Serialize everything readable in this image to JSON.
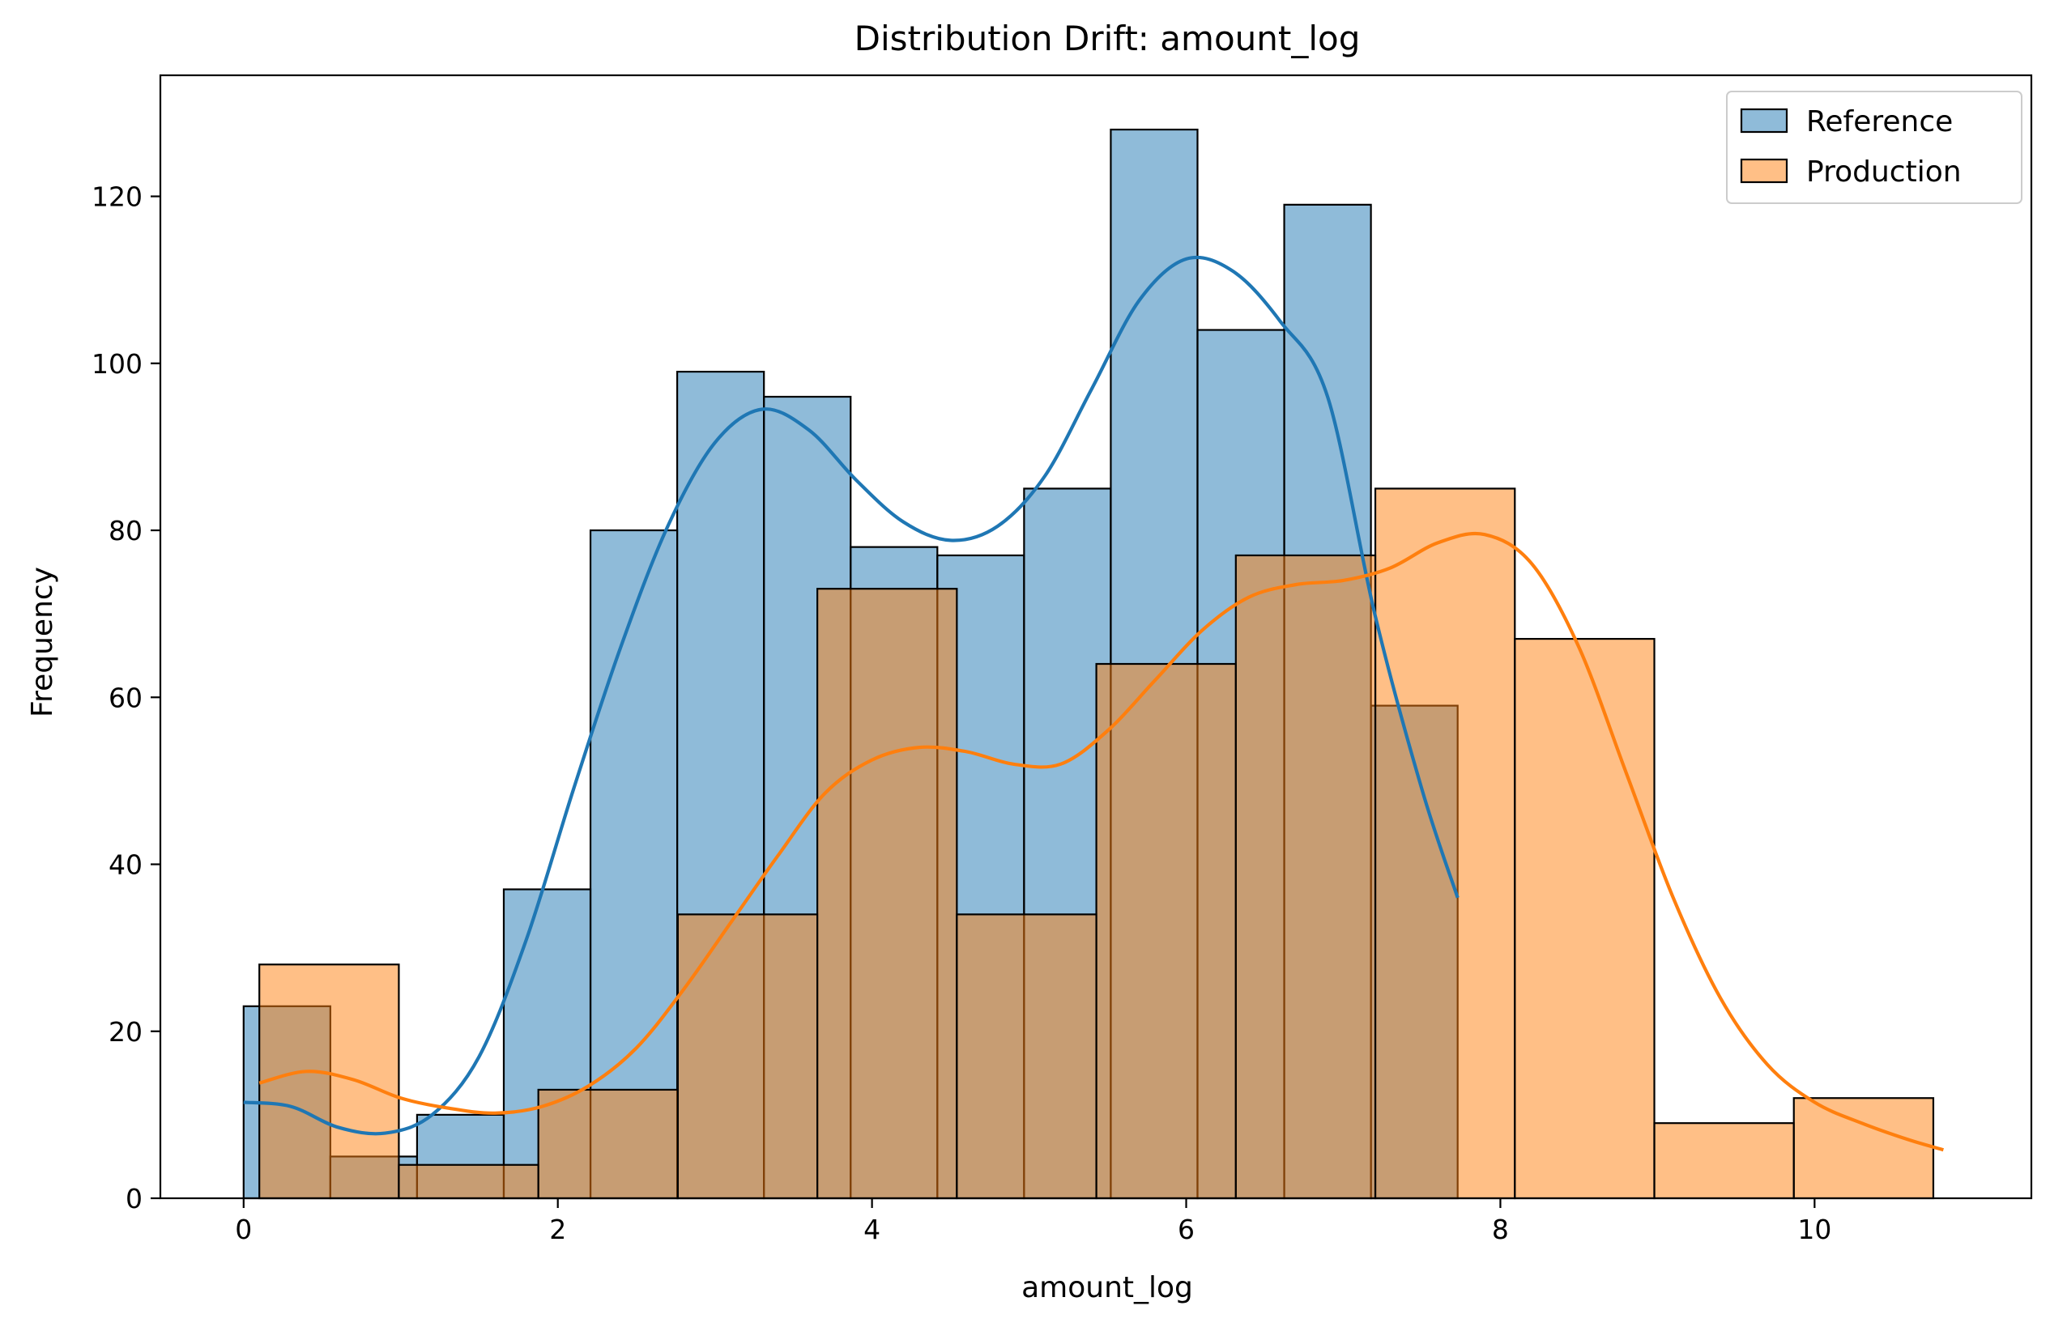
{
  "chart_data": {
    "type": "histogram",
    "title": "Distribution Drift: amount_log",
    "xlabel": "amount_log",
    "ylabel": "Frequency",
    "xlim": [
      -0.53,
      11.38
    ],
    "ylim": [
      0,
      134.5
    ],
    "xticks": [
      0,
      2,
      4,
      6,
      8,
      10
    ],
    "yticks": [
      0,
      20,
      40,
      60,
      80,
      100,
      120
    ],
    "xtick_labels": [
      "0",
      "2",
      "4",
      "6",
      "8",
      "10"
    ],
    "ytick_labels": [
      "0",
      "20",
      "40",
      "60",
      "80",
      "100",
      "120"
    ],
    "grid": false,
    "legend_position": "top-right",
    "series": [
      {
        "name": "Reference",
        "color": "#1f77b4",
        "bin_edges": [
          0.0,
          0.552,
          1.104,
          1.656,
          2.208,
          2.76,
          3.312,
          3.864,
          4.416,
          4.968,
          5.52,
          6.072,
          6.624,
          7.176,
          7.728
        ],
        "counts": [
          23,
          5,
          10,
          37,
          80,
          99,
          96,
          78,
          77,
          85,
          128,
          104,
          119,
          59
        ],
        "kde": [
          [
            0.0,
            11.5
          ],
          [
            0.3,
            11.0
          ],
          [
            0.6,
            8.5
          ],
          [
            0.9,
            7.8
          ],
          [
            1.2,
            10.0
          ],
          [
            1.5,
            17.0
          ],
          [
            1.8,
            31.0
          ],
          [
            2.1,
            49.0
          ],
          [
            2.4,
            66.0
          ],
          [
            2.7,
            80.5
          ],
          [
            3.0,
            90.5
          ],
          [
            3.3,
            94.5
          ],
          [
            3.6,
            92.0
          ],
          [
            3.9,
            86.0
          ],
          [
            4.2,
            81.0
          ],
          [
            4.5,
            78.8
          ],
          [
            4.8,
            80.5
          ],
          [
            5.1,
            86.5
          ],
          [
            5.4,
            97.0
          ],
          [
            5.7,
            107.5
          ],
          [
            6.0,
            112.5
          ],
          [
            6.3,
            111.0
          ],
          [
            6.6,
            105.0
          ],
          [
            6.9,
            96.0
          ],
          [
            7.2,
            70.0
          ],
          [
            7.5,
            49.0
          ],
          [
            7.728,
            36.0
          ]
        ]
      },
      {
        "name": "Production",
        "color": "#ff7f0e",
        "bin_edges": [
          0.1,
          0.988,
          1.876,
          2.764,
          3.652,
          4.54,
          5.428,
          6.316,
          7.204,
          8.092,
          8.98,
          9.868,
          10.756
        ],
        "counts": [
          28,
          4,
          13,
          34,
          73,
          34,
          64,
          77,
          85,
          67,
          9,
          12
        ],
        "kde": [
          [
            0.1,
            13.8
          ],
          [
            0.4,
            15.2
          ],
          [
            0.7,
            14.2
          ],
          [
            1.0,
            12.0
          ],
          [
            1.3,
            10.8
          ],
          [
            1.6,
            10.2
          ],
          [
            1.9,
            11.0
          ],
          [
            2.2,
            13.5
          ],
          [
            2.5,
            18.0
          ],
          [
            2.8,
            25.0
          ],
          [
            3.1,
            33.0
          ],
          [
            3.4,
            41.0
          ],
          [
            3.7,
            48.5
          ],
          [
            4.0,
            52.5
          ],
          [
            4.3,
            54.0
          ],
          [
            4.6,
            53.5
          ],
          [
            4.9,
            52.0
          ],
          [
            5.2,
            52.0
          ],
          [
            5.5,
            56.0
          ],
          [
            5.8,
            62.0
          ],
          [
            6.1,
            68.0
          ],
          [
            6.4,
            72.0
          ],
          [
            6.7,
            73.5
          ],
          [
            7.0,
            74.0
          ],
          [
            7.3,
            75.5
          ],
          [
            7.6,
            78.5
          ],
          [
            7.9,
            79.5
          ],
          [
            8.2,
            76.0
          ],
          [
            8.5,
            66.0
          ],
          [
            8.8,
            51.0
          ],
          [
            9.1,
            36.0
          ],
          [
            9.4,
            24.0
          ],
          [
            9.7,
            16.0
          ],
          [
            10.0,
            11.5
          ],
          [
            10.3,
            9.0
          ],
          [
            10.6,
            7.0
          ],
          [
            10.82,
            5.8
          ]
        ]
      }
    ]
  }
}
